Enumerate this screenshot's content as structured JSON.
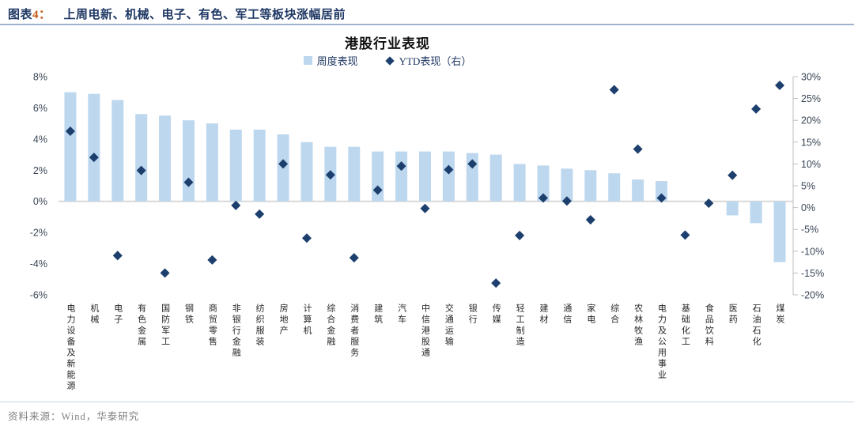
{
  "header": {
    "prefix": "图表",
    "number": "4：",
    "title": "上周电新、机械、电子、有色、军工等板块涨幅居前"
  },
  "chart": {
    "title": "港股行业表现",
    "legend": [
      {
        "label": "周度表现",
        "marker": "square",
        "color": "#BDD7EE"
      },
      {
        "label": "YTD表现（右）",
        "marker": "diamond",
        "color": "#1C3F6E"
      }
    ]
  },
  "chart_data": {
    "type": "bar",
    "title": "港股行业表现",
    "categories": [
      "电力设备及新能源",
      "机械",
      "电子",
      "有色金属",
      "国防军工",
      "钢铁",
      "商贸零售",
      "非银行金融",
      "纺织服装",
      "房地产",
      "计算机",
      "综合金融",
      "消费者服务",
      "建筑",
      "汽车",
      "中信港股通",
      "交通运输",
      "银行",
      "传媒",
      "轻工制造",
      "建材",
      "通信",
      "家电",
      "综合",
      "农林牧渔",
      "电力及公用事业",
      "基础化工",
      "食品饮料",
      "医药",
      "石油石化",
      "煤炭"
    ],
    "series": [
      {
        "name": "周度表现",
        "type": "bar",
        "axis": "left",
        "unit": "%",
        "values": [
          7.0,
          6.9,
          6.5,
          5.6,
          5.5,
          5.2,
          5.0,
          4.6,
          4.6,
          4.3,
          3.8,
          3.5,
          3.5,
          3.2,
          3.2,
          3.2,
          3.2,
          3.1,
          3.0,
          2.4,
          2.3,
          2.1,
          2.0,
          1.8,
          1.4,
          1.3,
          0.0,
          0.0,
          -0.9,
          -1.4,
          -3.9
        ]
      },
      {
        "name": "YTD表现（右）",
        "type": "scatter",
        "axis": "right",
        "unit": "%",
        "values": [
          17.5,
          11.5,
          -11.0,
          8.5,
          -15.0,
          5.8,
          -12.0,
          0.5,
          -1.5,
          10.0,
          -7.0,
          7.5,
          -11.5,
          4.0,
          9.5,
          -0.2,
          8.7,
          10.0,
          -17.3,
          -6.4,
          2.2,
          1.5,
          -2.8,
          27.0,
          13.4,
          2.2,
          -6.3,
          1.0,
          7.4,
          22.6,
          28.0
        ]
      }
    ],
    "left_axis": {
      "min": -6,
      "max": 8,
      "step": 2,
      "ticks": [
        "8%",
        "6%",
        "4%",
        "2%",
        "0%",
        "-2%",
        "-4%",
        "-6%"
      ]
    },
    "right_axis": {
      "min": -20,
      "max": 30,
      "step": 5,
      "ticks": [
        "30%",
        "25%",
        "20%",
        "15%",
        "10%",
        "5%",
        "0%",
        "-5%",
        "-10%",
        "-15%",
        "-20%"
      ]
    },
    "legend_position": "top",
    "grid": "zero-line-only"
  },
  "footer": {
    "source": "资料来源：Wind，华泰研究"
  },
  "colors": {
    "bar_fill": "#BDD7EE",
    "diamond_fill": "#1C3F6E",
    "header_navy": "#1F3864",
    "accent_orange": "#C45911",
    "zero_line_gray": "#D9D9D9",
    "axis_line_gray": "#BFBFBF",
    "axis_label": "#3A4656",
    "source_gray": "#808080"
  }
}
